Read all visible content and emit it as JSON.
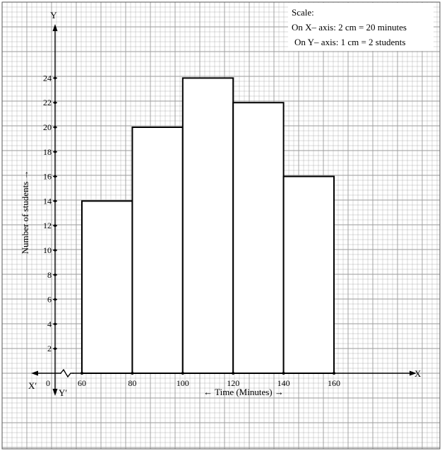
{
  "chart_data": {
    "type": "histogram",
    "bins": [
      {
        "from": 60,
        "to": 80,
        "value": 14
      },
      {
        "from": 80,
        "to": 100,
        "value": 20
      },
      {
        "from": 100,
        "to": 120,
        "value": 24
      },
      {
        "from": 120,
        "to": 140,
        "value": 22
      },
      {
        "from": 140,
        "to": 160,
        "value": 16
      }
    ],
    "x_ticks": [
      "0",
      "60",
      "80",
      "100",
      "120",
      "140",
      "160"
    ],
    "y_ticks": [
      "2",
      "4",
      "6",
      "8",
      "10",
      "12",
      "14",
      "16",
      "18",
      "20",
      "22",
      "24"
    ],
    "xlabel": "← Time (Minutes) →",
    "ylabel": "Number of students →",
    "ylim": [
      0,
      24
    ],
    "axis_names": {
      "x": "X",
      "x_neg": "X′",
      "y": "Y",
      "y_neg": "Y′"
    },
    "grid": true,
    "axis_break": true
  },
  "scale": {
    "title": "Scale:",
    "x_line": "On X– axis: 2 cm = 20 minutes",
    "y_line": "On Y– axis: 1 cm = 2 students"
  },
  "colors": {
    "bar_fill": "#ffffff",
    "grid": "#9a9a9a",
    "ink": "#000000"
  }
}
